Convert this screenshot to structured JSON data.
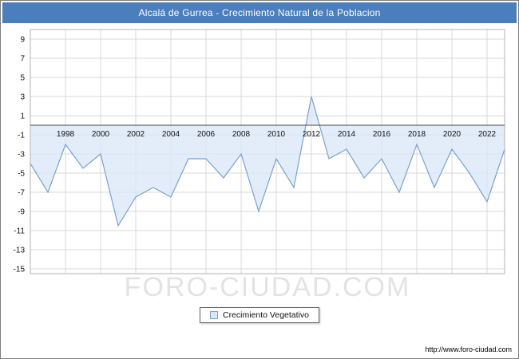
{
  "header": {
    "title": "Alcalá de Gurrea - Crecimiento Natural de la Poblacion"
  },
  "legend": {
    "label": "Crecimiento Vegetativo"
  },
  "watermark": {
    "text": "FORO-CIUDAD.COM"
  },
  "footer": {
    "url": "http://www.foro-ciudad.com"
  },
  "colors": {
    "header_bg": "#4a7ebd",
    "line": "#7aa1d4",
    "fill": "#dbe8f7",
    "grid": "#d8d8d8",
    "axis": "#444444",
    "plot_border": "#b3b3b3",
    "watermark": "#e3e3e3",
    "tick_text": "#111111"
  },
  "chart_data": {
    "type": "area",
    "title": "Alcalá de Gurrea - Crecimiento Natural de la Poblacion",
    "xlabel": "",
    "ylabel": "",
    "x": [
      1996,
      1997,
      1998,
      1999,
      2000,
      2001,
      2002,
      2003,
      2004,
      2005,
      2006,
      2007,
      2008,
      2009,
      2010,
      2011,
      2012,
      2013,
      2014,
      2015,
      2016,
      2017,
      2018,
      2019,
      2020,
      2021,
      2022,
      2023
    ],
    "series": [
      {
        "name": "Crecimiento Vegetativo",
        "values": [
          -4,
          -7,
          -2,
          -4.5,
          -3,
          -10.5,
          -7.5,
          -6.5,
          -7.5,
          -3.5,
          -3.5,
          -5.5,
          -3,
          -9,
          -3.5,
          -6.5,
          3,
          -3.5,
          -2.5,
          -5.5,
          -3.5,
          -7,
          -2,
          -6.5,
          -2.5,
          -5,
          -8,
          -2.5
        ]
      }
    ],
    "baseline": 0,
    "ylim": [
      -15.5,
      10
    ],
    "yticks": [
      9,
      7,
      5,
      3,
      1,
      -1,
      -3,
      -5,
      -7,
      -9,
      -11,
      -13,
      -15
    ],
    "xticks": [
      1998,
      2000,
      2002,
      2004,
      2006,
      2008,
      2010,
      2012,
      2014,
      2016,
      2018,
      2020,
      2022
    ],
    "grid": true,
    "legend_position": "bottom"
  }
}
